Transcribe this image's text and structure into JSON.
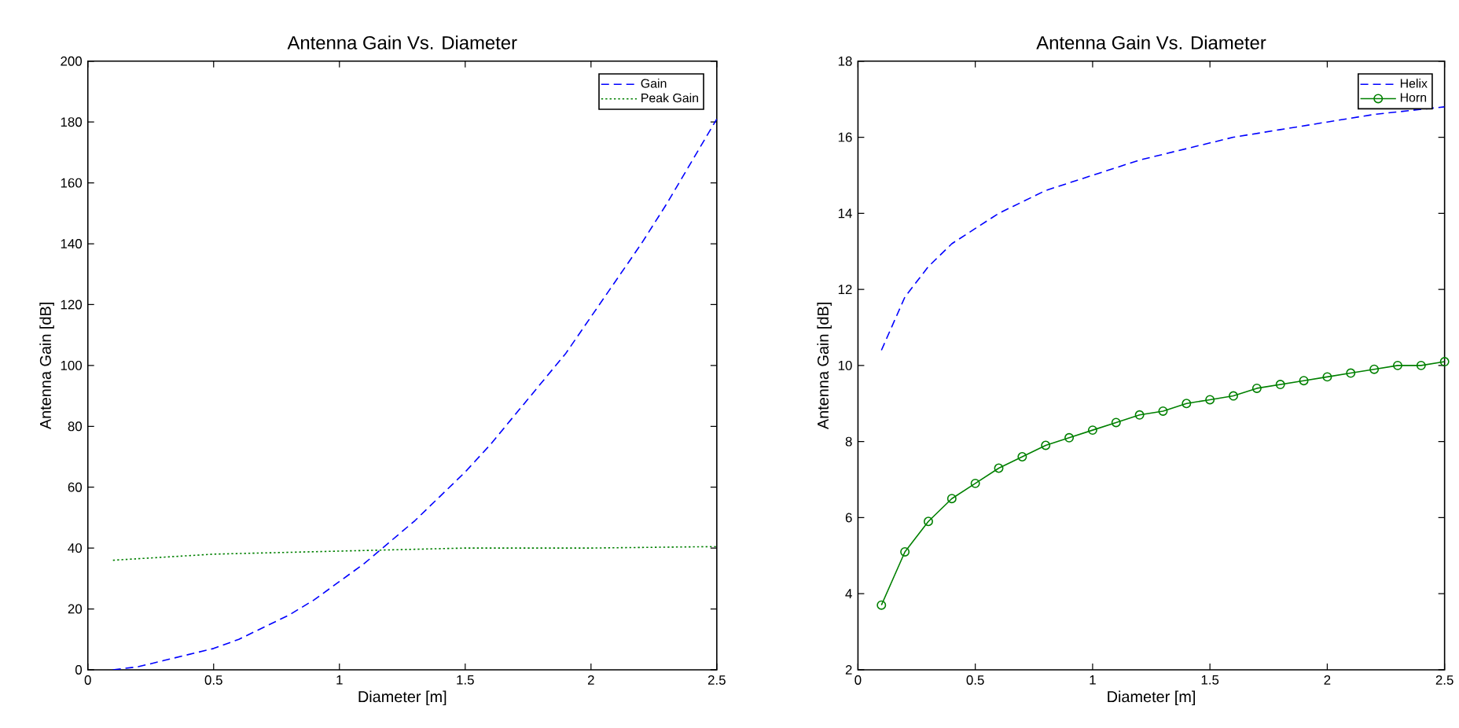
{
  "chart_data": [
    {
      "type": "line",
      "title": "Antenna Gain Vs. Diameter",
      "xlabel": "Diameter [m]",
      "ylabel": "Antenna Gain [dB]",
      "xlim": [
        0,
        2.5
      ],
      "ylim": [
        0,
        200
      ],
      "xticks": [
        0,
        0.5,
        1,
        1.5,
        2,
        2.5
      ],
      "yticks": [
        0,
        20,
        40,
        60,
        80,
        100,
        120,
        140,
        160,
        180,
        200
      ],
      "legend": "top right",
      "grid": false,
      "series": [
        {
          "name": "Gain",
          "color": "#0000ff",
          "line_style": "dashed",
          "marker": "none",
          "x": [
            0.1,
            0.2,
            0.3,
            0.4,
            0.5,
            0.6,
            0.7,
            0.8,
            0.9,
            1.0,
            1.1,
            1.2,
            1.3,
            1.4,
            1.5,
            1.6,
            1.7,
            1.8,
            1.9,
            2.0,
            2.1,
            2.2,
            2.3,
            2.4,
            2.5
          ],
          "values": [
            0,
            1,
            3,
            5,
            7,
            10,
            14,
            18,
            23,
            29,
            35,
            42,
            49,
            57,
            65,
            74,
            84,
            94,
            104,
            116,
            128,
            140,
            153,
            167,
            181
          ]
        },
        {
          "name": "Peak Gain",
          "color": "#008000",
          "line_style": "dotted",
          "marker": "none",
          "x": [
            0.1,
            0.3,
            0.5,
            0.75,
            1.0,
            1.5,
            2.0,
            2.5
          ],
          "values": [
            36,
            37,
            38,
            38.5,
            39,
            40,
            40,
            40.5
          ]
        }
      ]
    },
    {
      "type": "line",
      "title": "Antenna Gain Vs. Diameter",
      "xlabel": "Diameter [m]",
      "ylabel": "Antenna Gain [dB]",
      "xlim": [
        0,
        2.5
      ],
      "ylim": [
        2,
        18
      ],
      "xticks": [
        0,
        0.5,
        1,
        1.5,
        2,
        2.5
      ],
      "yticks": [
        2,
        4,
        6,
        8,
        10,
        12,
        14,
        16,
        18
      ],
      "legend": "top right",
      "grid": false,
      "series": [
        {
          "name": "Helix",
          "color": "#0000ff",
          "line_style": "dashed",
          "marker": "none",
          "x": [
            0.1,
            0.2,
            0.3,
            0.4,
            0.5,
            0.6,
            0.7,
            0.8,
            0.9,
            1.0,
            1.2,
            1.4,
            1.6,
            1.8,
            2.0,
            2.2,
            2.5
          ],
          "values": [
            10.4,
            11.8,
            12.6,
            13.2,
            13.6,
            14.0,
            14.3,
            14.6,
            14.8,
            15.0,
            15.4,
            15.7,
            16.0,
            16.2,
            16.4,
            16.6,
            16.8
          ]
        },
        {
          "name": "Horn",
          "color": "#008000",
          "line_style": "solid",
          "marker": "circle",
          "x": [
            0.1,
            0.2,
            0.3,
            0.4,
            0.5,
            0.6,
            0.7,
            0.8,
            0.9,
            1.0,
            1.1,
            1.2,
            1.3,
            1.4,
            1.5,
            1.6,
            1.7,
            1.8,
            1.9,
            2.0,
            2.1,
            2.2,
            2.3,
            2.4,
            2.5
          ],
          "values": [
            3.7,
            5.1,
            5.9,
            6.5,
            6.9,
            7.3,
            7.6,
            7.9,
            8.1,
            8.3,
            8.5,
            8.7,
            8.8,
            9.0,
            9.1,
            9.2,
            9.4,
            9.5,
            9.6,
            9.7,
            9.8,
            9.9,
            10.0,
            10.0,
            10.1
          ]
        }
      ]
    }
  ]
}
